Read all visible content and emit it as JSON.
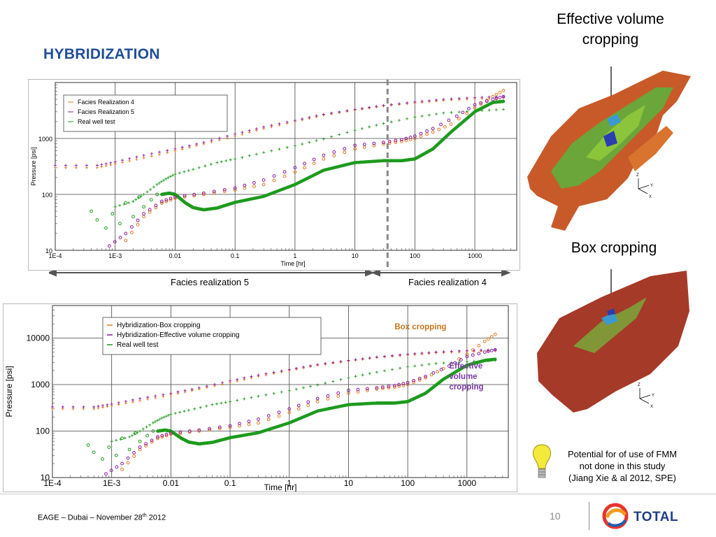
{
  "slide": {
    "title": "HYBRIDIZATION",
    "footer": "EAGE – Dubai – November 28",
    "footer_sup": "th",
    "footer_year": " 2012",
    "page_number": "10",
    "brand": "TOTAL"
  },
  "captions": {
    "effective": [
      "Effective volume",
      "cropping"
    ],
    "box": "Box cropping",
    "note": [
      "Potential for of use of FMM",
      "not done in this study",
      "(Jiang Xie & al 2012, SPE)"
    ]
  },
  "model_axes": {
    "z": "Z",
    "y": "Y",
    "x": "X"
  },
  "icons": {
    "bulb": "lightbulb-icon",
    "logo": "total-logo-icon"
  },
  "colors": {
    "title": "#1f4e96",
    "green": "#1e9a1e",
    "orange": "#e07a20",
    "purple": "#8a1aa0",
    "box_label": "#c8741c",
    "eff_label": "#7a3aa8"
  },
  "chart_data": [
    {
      "type": "scatter",
      "id": "top",
      "title": "",
      "xlabel": "Time [hr]",
      "ylabel": "Pressure [psi]",
      "xscale": "log",
      "yscale": "log",
      "xlim": [
        0.0001,
        5000
      ],
      "ylim": [
        10,
        10000
      ],
      "x_ticks": [
        0.0001,
        0.001,
        0.01,
        0.1,
        1,
        10,
        100,
        1000
      ],
      "x_tick_labels": [
        "1E-4",
        "1E-3",
        "0.01",
        "0.1",
        "1",
        "10",
        "100",
        "1000"
      ],
      "y_ticks": [
        10,
        100,
        1000
      ],
      "y_tick_labels": [
        "10",
        "100",
        "1000"
      ],
      "grid": true,
      "legend_position": "top-left",
      "legend": [
        "Facies Realization 4",
        "Facies Realization 5",
        "Real well test"
      ],
      "split_time": 35,
      "segment_labels": {
        "left": "Facies realization 5",
        "right": "Facies realization 4"
      },
      "series": [
        {
          "name": "Real well test (pressure)",
          "color": "#1e9a1e",
          "marker": "line",
          "x": [
            0.006,
            0.008,
            0.01,
            0.015,
            0.02,
            0.03,
            0.05,
            0.1,
            0.3,
            1,
            3,
            10,
            30,
            60,
            100,
            200,
            400,
            1000,
            2000,
            3000
          ],
          "y": [
            100,
            105,
            100,
            70,
            58,
            53,
            57,
            72,
            92,
            150,
            270,
            370,
            400,
            400,
            430,
            650,
            1300,
            3000,
            4400,
            4600
          ]
        },
        {
          "name": "Real well test (derivative)",
          "color": "#1e9a1e",
          "marker": "plus",
          "x": [
            0.001,
            0.002,
            0.003,
            0.005,
            0.007,
            0.01,
            0.02,
            0.05,
            0.1,
            0.3,
            1,
            3,
            10,
            30,
            100,
            300,
            1000,
            3000
          ],
          "y": [
            60,
            75,
            100,
            150,
            190,
            230,
            280,
            370,
            430,
            560,
            740,
            980,
            1400,
            1850,
            2400,
            2850,
            3100,
            3300
          ]
        },
        {
          "name": "Real well test (early)",
          "color": "#1e9a1e",
          "marker": "circle",
          "x": [
            0.0004,
            0.0005,
            0.0007,
            0.0009,
            0.0012,
            0.0015,
            0.002,
            0.0025,
            0.003,
            0.004,
            0.005,
            0.006
          ],
          "y": [
            50,
            35,
            25,
            45,
            30,
            70,
            40,
            90,
            60,
            80,
            100,
            70
          ]
        },
        {
          "name": "Facies Realization 4 (pressure)",
          "color": "#e07a20",
          "marker": "circle",
          "x": [
            0.0015,
            0.003,
            0.006,
            0.01,
            0.03,
            0.1,
            0.3,
            1,
            3,
            10,
            30,
            60,
            100,
            200,
            400,
            1000,
            2000,
            3000
          ],
          "y": [
            15,
            40,
            70,
            85,
            100,
            120,
            150,
            250,
            430,
            650,
            800,
            880,
            1000,
            1300,
            1800,
            3500,
            5600,
            7200
          ]
        },
        {
          "name": "Facies Realization 4 (derivative)",
          "color": "#e07a20",
          "marker": "plus",
          "x": [
            0.0001,
            0.0005,
            0.001,
            0.003,
            0.01,
            0.03,
            0.1,
            0.3,
            1,
            3,
            10,
            30,
            100,
            300,
            1000,
            3000
          ],
          "y": [
            300,
            300,
            350,
            450,
            600,
            800,
            1100,
            1500,
            2000,
            2600,
            3200,
            3800,
            4300,
            4800,
            5100,
            5300
          ]
        },
        {
          "name": "Facies Realization 5 (pressure)",
          "color": "#8a1aa0",
          "marker": "circle",
          "x": [
            0.0008,
            0.0015,
            0.003,
            0.006,
            0.01,
            0.03,
            0.1,
            0.3,
            1,
            3,
            10,
            30,
            60,
            100,
            200,
            500,
            1000,
            2000,
            3000
          ],
          "y": [
            12,
            20,
            45,
            75,
            90,
            105,
            130,
            180,
            300,
            500,
            750,
            850,
            950,
            1100,
            1500,
            2500,
            4000,
            5000,
            5600
          ]
        },
        {
          "name": "Facies Realization 5 (derivative)",
          "color": "#8a1aa0",
          "marker": "plus",
          "x": [
            0.0001,
            0.0005,
            0.001,
            0.003,
            0.01,
            0.03,
            0.1,
            0.3,
            1,
            3,
            10,
            30,
            100,
            300,
            1000,
            3000
          ],
          "y": [
            330,
            330,
            380,
            500,
            650,
            850,
            1200,
            1600,
            2100,
            2700,
            3300,
            3900,
            4500,
            5000,
            5400,
            5600
          ]
        }
      ]
    },
    {
      "type": "scatter",
      "id": "bottom",
      "title": "",
      "xlabel": "Time [hr]",
      "ylabel": "Pressure [psi]",
      "xscale": "log",
      "yscale": "log",
      "xlim": [
        0.0001,
        5000
      ],
      "ylim": [
        10,
        50000
      ],
      "x_ticks": [
        0.0001,
        0.001,
        0.01,
        0.1,
        1,
        10,
        100,
        1000
      ],
      "x_tick_labels": [
        "1E-4",
        "1E-3",
        "0.01",
        "0.1",
        "1",
        "10",
        "100",
        "1000"
      ],
      "y_ticks": [
        10,
        100,
        1000,
        10000
      ],
      "y_tick_labels": [
        "10",
        "100",
        "1000",
        "10000"
      ],
      "grid": true,
      "legend_position": "top-left",
      "legend": [
        "Hybridization-Box cropping",
        "Hybridization-Effective volume  cropping",
        "Real well test"
      ],
      "annotations": [
        {
          "text": "Box cropping",
          "color": "#c8741c"
        },
        {
          "text": "Effective volume cropping",
          "lines": [
            "Effective",
            "volume",
            "cropping"
          ],
          "color": "#7a3aa8"
        }
      ],
      "series": [
        {
          "name": "Real well test (pressure)",
          "color": "#1e9a1e",
          "marker": "line",
          "x": [
            0.006,
            0.008,
            0.01,
            0.015,
            0.02,
            0.03,
            0.05,
            0.1,
            0.3,
            1,
            3,
            10,
            30,
            60,
            100,
            200,
            400,
            1000,
            2000,
            3000
          ],
          "y": [
            100,
            105,
            100,
            70,
            58,
            53,
            57,
            72,
            92,
            150,
            270,
            370,
            400,
            400,
            430,
            650,
            1300,
            2600,
            3300,
            3500
          ]
        },
        {
          "name": "Real well test (derivative)",
          "color": "#1e9a1e",
          "marker": "plus",
          "x": [
            0.001,
            0.002,
            0.003,
            0.005,
            0.007,
            0.01,
            0.02,
            0.05,
            0.1,
            0.3,
            1,
            3,
            10,
            30,
            100,
            300,
            1000,
            3000
          ],
          "y": [
            60,
            75,
            100,
            150,
            190,
            230,
            280,
            370,
            430,
            560,
            740,
            980,
            1400,
            1850,
            2400,
            2850,
            3100,
            3300
          ]
        },
        {
          "name": "Real well test (early)",
          "color": "#1e9a1e",
          "marker": "circle",
          "x": [
            0.0004,
            0.0005,
            0.0007,
            0.0009,
            0.0012,
            0.0015,
            0.002,
            0.0025,
            0.003,
            0.004,
            0.005,
            0.006
          ],
          "y": [
            50,
            35,
            25,
            45,
            30,
            70,
            40,
            90,
            60,
            80,
            100,
            70
          ]
        },
        {
          "name": "Hybridization-Box cropping (pressure)",
          "color": "#e07a20",
          "marker": "circle",
          "x": [
            0.0015,
            0.003,
            0.006,
            0.01,
            0.03,
            0.1,
            0.3,
            1,
            3,
            10,
            30,
            60,
            100,
            200,
            400,
            1000,
            2000,
            3000
          ],
          "y": [
            15,
            40,
            70,
            85,
            100,
            120,
            150,
            250,
            430,
            650,
            800,
            880,
            1000,
            1400,
            2200,
            4500,
            8500,
            12000
          ]
        },
        {
          "name": "Hybridization-Box cropping (derivative)",
          "color": "#e07a20",
          "marker": "plus",
          "x": [
            0.0001,
            0.0005,
            0.001,
            0.003,
            0.01,
            0.03,
            0.1,
            0.3,
            1,
            3,
            10,
            30,
            100,
            300,
            1000,
            3000
          ],
          "y": [
            300,
            300,
            350,
            450,
            600,
            800,
            1100,
            1500,
            2000,
            2600,
            3200,
            3800,
            4300,
            4800,
            5100,
            5300
          ]
        },
        {
          "name": "Hybridization-Effective volume cropping (pressure)",
          "color": "#8a1aa0",
          "marker": "circle",
          "x": [
            0.0008,
            0.0015,
            0.003,
            0.006,
            0.01,
            0.03,
            0.1,
            0.3,
            1,
            3,
            10,
            30,
            60,
            100,
            200,
            500,
            1000,
            2000,
            3000
          ],
          "y": [
            12,
            20,
            45,
            75,
            90,
            105,
            130,
            180,
            300,
            500,
            750,
            850,
            950,
            1100,
            1500,
            2500,
            4000,
            5000,
            5600
          ]
        },
        {
          "name": "Hybridization-Effective volume cropping (derivative)",
          "color": "#8a1aa0",
          "marker": "plus",
          "x": [
            0.0001,
            0.0005,
            0.001,
            0.003,
            0.01,
            0.03,
            0.1,
            0.3,
            1,
            3,
            10,
            30,
            100,
            300,
            1000,
            3000
          ],
          "y": [
            330,
            330,
            380,
            500,
            650,
            850,
            1200,
            1600,
            2100,
            2700,
            3300,
            3900,
            4500,
            5000,
            5400,
            5600
          ]
        }
      ]
    }
  ]
}
